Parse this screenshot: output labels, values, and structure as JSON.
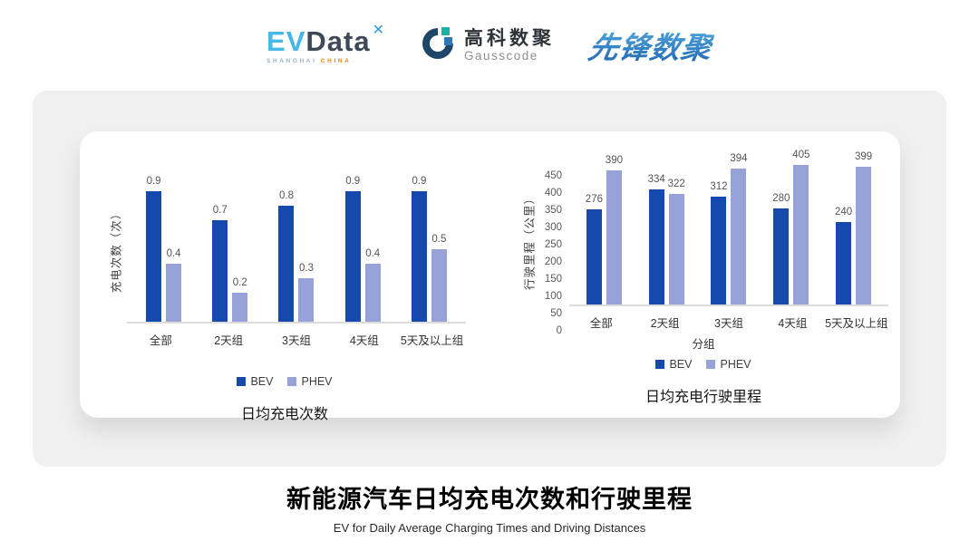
{
  "header": {
    "evdata_logo": {
      "text_ev": "EV",
      "text_data": "Data",
      "mark": "✕",
      "subtext_left": "SHANGHAI",
      "subtext_right": " CHINA"
    },
    "gausscode_logo": {
      "name_cn": "高科数聚",
      "name_en": "Gausscode"
    },
    "pioneer_logo": {
      "name": "先锋数聚"
    }
  },
  "chart_data": [
    {
      "type": "bar",
      "title": "日均充电次数",
      "ylabel": "充电次数（次）",
      "xlabel": "",
      "categories": [
        "全部",
        "2天组",
        "3天组",
        "4天组",
        "5天及以上组"
      ],
      "series": [
        {
          "name": "BEV",
          "color": "#1649ae",
          "values": [
            0.9,
            0.7,
            0.8,
            0.9,
            0.9
          ]
        },
        {
          "name": "PHEV",
          "color": "#97a3d8",
          "values": [
            0.4,
            0.2,
            0.3,
            0.4,
            0.5
          ]
        }
      ],
      "ylim": [
        0,
        1.0
      ],
      "yticks": [],
      "grid": false,
      "legend_position": "bottom",
      "value_labels": true
    },
    {
      "type": "bar",
      "title": "日均充电行驶里程",
      "ylabel": "行驶里程（公里）",
      "xlabel": "分组",
      "categories": [
        "全部",
        "2天组",
        "3天组",
        "4天组",
        "5天及以上组"
      ],
      "series": [
        {
          "name": "BEV",
          "color": "#1649ae",
          "values": [
            276,
            334,
            312,
            280,
            240
          ]
        },
        {
          "name": "PHEV",
          "color": "#97a3d8",
          "values": [
            390,
            322,
            394,
            405,
            399
          ]
        }
      ],
      "ylim": [
        0,
        450
      ],
      "yticks": [
        0,
        50,
        100,
        150,
        200,
        250,
        300,
        350,
        400,
        450
      ],
      "grid": false,
      "legend_position": "bottom",
      "value_labels": true
    }
  ],
  "footer": {
    "title": "新能源汽车日均充电次数和行驶里程",
    "subtitle": "EV for Daily Average Charging Times and Driving Distances"
  },
  "colors": {
    "bev_blue": "#1649ae",
    "phev_lavender": "#97a3d8",
    "panel_gray": "#f0f0f1",
    "evdata_blue": "#45b7e8",
    "evdata_dark": "#3d4956",
    "china_orange": "#f08300",
    "pioneer_blue_top": "#55aee3",
    "pioneer_blue_bottom": "#1e64b0",
    "gausscode_navy": "#1d4668",
    "gausscode_teal": "#19b2a6",
    "gausscode_blue": "#2d77bb"
  }
}
